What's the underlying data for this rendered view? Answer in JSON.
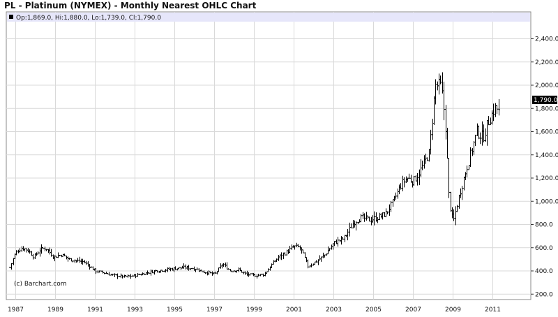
{
  "title": "PL - Platinum (NYMEX) - Monthly Nearest OHLC Chart",
  "info_bar": "Op:1,869.0, Hi:1,880.0, Lo:1,739.0, Cl:1,790.0",
  "copyright": "(c) Barchart.com",
  "last_value_label": "1,790.0",
  "colors": {
    "bars": "#000000",
    "info_bg": "#e6e6fa",
    "grid": "#d9d9d9",
    "frame": "#888888"
  },
  "chart_data": {
    "type": "ohlc",
    "title": "PL - Platinum (NYMEX) - Monthly Nearest OHLC Chart",
    "xlabel": "",
    "ylabel": "",
    "ylim": [
      100,
      2500
    ],
    "xlim": [
      1986.6,
      2011.9
    ],
    "grid": true,
    "y_ticks": [
      200,
      400,
      600,
      800,
      1000,
      1200,
      1400,
      1600,
      1800,
      2000,
      2200,
      2400
    ],
    "y_tick_labels": [
      "200.0",
      "400.0",
      "600.0",
      "800.0",
      "1,000.0",
      "1,200.0",
      "1,400.0",
      "1,600.0",
      "1,800.0",
      "2,000.0",
      "2,200.0",
      "2,400.0"
    ],
    "x_ticks": [
      1987,
      1989,
      1991,
      1993,
      1995,
      1997,
      1999,
      2001,
      2003,
      2005,
      2007,
      2009,
      2011
    ],
    "x_tick_labels": [
      "1987",
      "1989",
      "1991",
      "1993",
      "1995",
      "1997",
      "1999",
      "2001",
      "2003",
      "2005",
      "2007",
      "2009",
      "2011"
    ],
    "last": {
      "open": 1869.0,
      "high": 1880.0,
      "low": 1739.0,
      "close": 1790.0
    },
    "approx_monthly_close": [
      [
        1986.7,
        430
      ],
      [
        1987.0,
        560
      ],
      [
        1987.3,
        600
      ],
      [
        1987.6,
        580
      ],
      [
        1987.9,
        520
      ],
      [
        1988.2,
        580
      ],
      [
        1988.5,
        600
      ],
      [
        1988.9,
        520
      ],
      [
        1989.3,
        540
      ],
      [
        1989.7,
        500
      ],
      [
        1990.0,
        490
      ],
      [
        1990.4,
        480
      ],
      [
        1990.7,
        440
      ],
      [
        1991.0,
        400
      ],
      [
        1991.5,
        380
      ],
      [
        1992.0,
        360
      ],
      [
        1992.5,
        350
      ],
      [
        1993.0,
        360
      ],
      [
        1993.5,
        380
      ],
      [
        1994.0,
        400
      ],
      [
        1994.5,
        410
      ],
      [
        1995.0,
        420
      ],
      [
        1995.5,
        430
      ],
      [
        1996.0,
        420
      ],
      [
        1996.5,
        390
      ],
      [
        1997.0,
        370
      ],
      [
        1997.4,
        460
      ],
      [
        1997.8,
        400
      ],
      [
        1998.2,
        410
      ],
      [
        1998.6,
        370
      ],
      [
        1999.0,
        360
      ],
      [
        1999.5,
        370
      ],
      [
        1999.8,
        440
      ],
      [
        2000.2,
        520
      ],
      [
        2000.6,
        560
      ],
      [
        2001.0,
        610
      ],
      [
        2001.3,
        600
      ],
      [
        2001.7,
        440
      ],
      [
        2002.0,
        470
      ],
      [
        2002.5,
        530
      ],
      [
        2003.0,
        640
      ],
      [
        2003.5,
        680
      ],
      [
        2004.0,
        820
      ],
      [
        2004.4,
        860
      ],
      [
        2004.8,
        840
      ],
      [
        2005.2,
        860
      ],
      [
        2005.6,
        890
      ],
      [
        2006.0,
        1000
      ],
      [
        2006.4,
        1150
      ],
      [
        2006.7,
        1200
      ],
      [
        2007.0,
        1170
      ],
      [
        2007.4,
        1280
      ],
      [
        2007.8,
        1420
      ],
      [
        2008.1,
        2000
      ],
      [
        2008.4,
        1990
      ],
      [
        2008.6,
        1700
      ],
      [
        2008.8,
        1000
      ],
      [
        2009.0,
        820
      ],
      [
        2009.3,
        1050
      ],
      [
        2009.6,
        1240
      ],
      [
        2009.9,
        1420
      ],
      [
        2010.2,
        1600
      ],
      [
        2010.5,
        1550
      ],
      [
        2010.8,
        1700
      ],
      [
        2011.1,
        1800
      ],
      [
        2011.3,
        1790
      ]
    ]
  }
}
